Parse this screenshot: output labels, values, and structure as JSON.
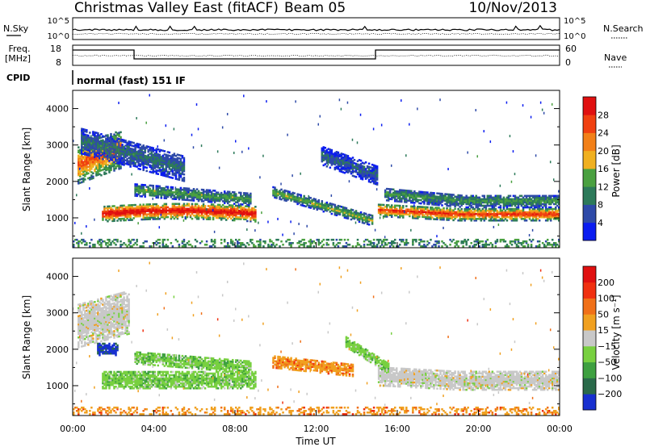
{
  "header": {
    "title": "Christmas Valley East (fitACF)",
    "beam": "Beam 05",
    "date": "10/Nov/2013"
  },
  "top_panels": {
    "nsky_label": "N.Sky",
    "nsky_ticks": [
      "10^5",
      "10^0"
    ],
    "nsearch_label": "N.Search",
    "nsearch_ticks": [
      "10^5",
      "10^0"
    ],
    "freq_label_1": "Freq.",
    "freq_label_2": "[MHz]",
    "freq_ticks": [
      "18",
      "8"
    ],
    "nave_label": "Nave",
    "nave_ticks": [
      "60",
      "0"
    ],
    "cpid_label": "CPID",
    "cpid_text": "normal (fast) 151 IF"
  },
  "chart_data": [
    {
      "type": "heatmap",
      "name": "power-panel",
      "ylabel": "Slant Range [km]",
      "yticks": [
        1000,
        2000,
        3000,
        4000
      ],
      "ylim": [
        180,
        4500
      ],
      "xlim": [
        0,
        24
      ],
      "colorbar": {
        "label": "Power [dB]",
        "ticks": [
          "4",
          "8",
          "12",
          "16",
          "20",
          "24",
          "28"
        ],
        "colors": [
          "#0a1cf0",
          "#2e4aa8",
          "#2d7a5a",
          "#4aa040",
          "#f0b020",
          "#f28018",
          "#f04010",
          "#e01010"
        ]
      }
    },
    {
      "type": "heatmap",
      "name": "velocity-panel",
      "ylabel": "Slant Range [km]",
      "yticks": [
        1000,
        2000,
        3000,
        4000
      ],
      "ylim": [
        180,
        4500
      ],
      "xlim": [
        0,
        24
      ],
      "xticks": [
        "00:00",
        "04:00",
        "08:00",
        "12:00",
        "16:00",
        "20:00",
        "00:00"
      ],
      "xlabel": "Time UT",
      "colorbar": {
        "label": "Velocity [m s⁻¹]",
        "ticks": [
          "200",
          "100",
          "50",
          "15",
          "−15",
          "−50",
          "−100",
          "−200"
        ],
        "colors": [
          "#1830d0",
          "#2a6a4a",
          "#3ea040",
          "#78d040",
          "#c8c8c8",
          "#f0a020",
          "#f07018",
          "#f03010",
          "#e01010"
        ]
      }
    }
  ]
}
